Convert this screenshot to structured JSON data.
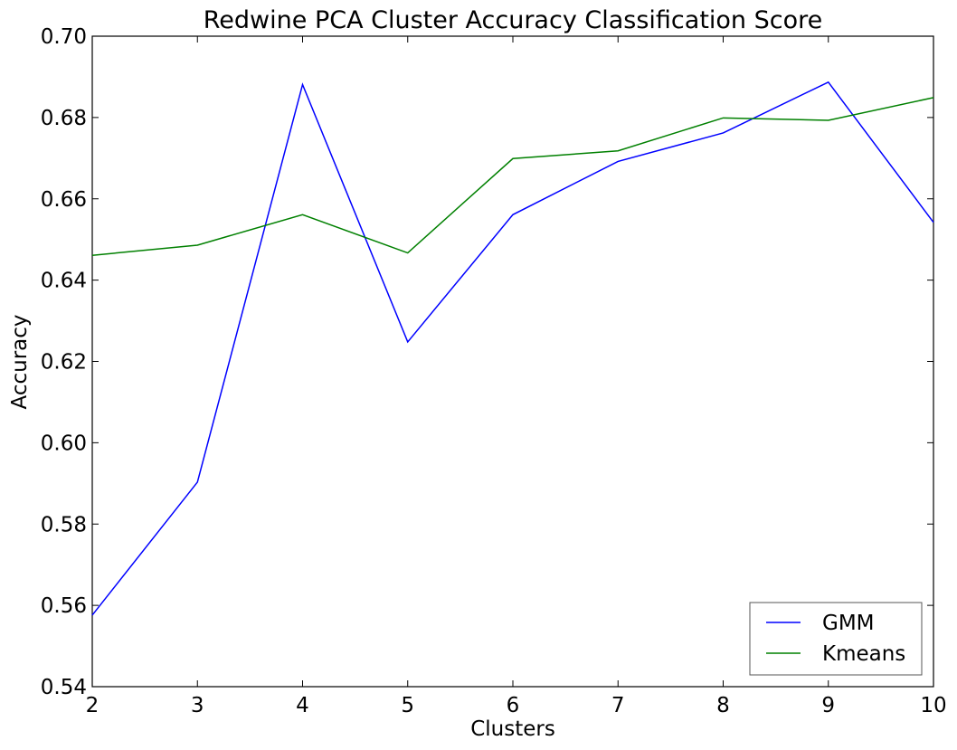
{
  "chart_data": {
    "type": "line",
    "title": "Redwine PCA Cluster Accuracy Classification Score",
    "xlabel": "Clusters",
    "ylabel": "Accuracy",
    "xlim": [
      2,
      10
    ],
    "ylim": [
      0.54,
      0.7
    ],
    "x_ticks": [
      "2",
      "3",
      "4",
      "5",
      "6",
      "7",
      "8",
      "9",
      "10"
    ],
    "y_ticks": [
      "0.54",
      "0.56",
      "0.58",
      "0.60",
      "0.62",
      "0.64",
      "0.66",
      "0.68",
      "0.70"
    ],
    "x": [
      2,
      3,
      4,
      5,
      6,
      7,
      8,
      9,
      10
    ],
    "series": [
      {
        "name": "GMM",
        "color": "#0000ff",
        "values": [
          0.5576,
          0.5903,
          0.6881,
          0.6248,
          0.6561,
          0.6692,
          0.6762,
          0.6887,
          0.6542
        ]
      },
      {
        "name": "Kmeans",
        "color": "#008000",
        "values": [
          0.6461,
          0.6486,
          0.6561,
          0.6467,
          0.6699,
          0.6718,
          0.6799,
          0.6793,
          0.6849
        ]
      }
    ],
    "grid": false,
    "legend_position": "lower-right"
  }
}
